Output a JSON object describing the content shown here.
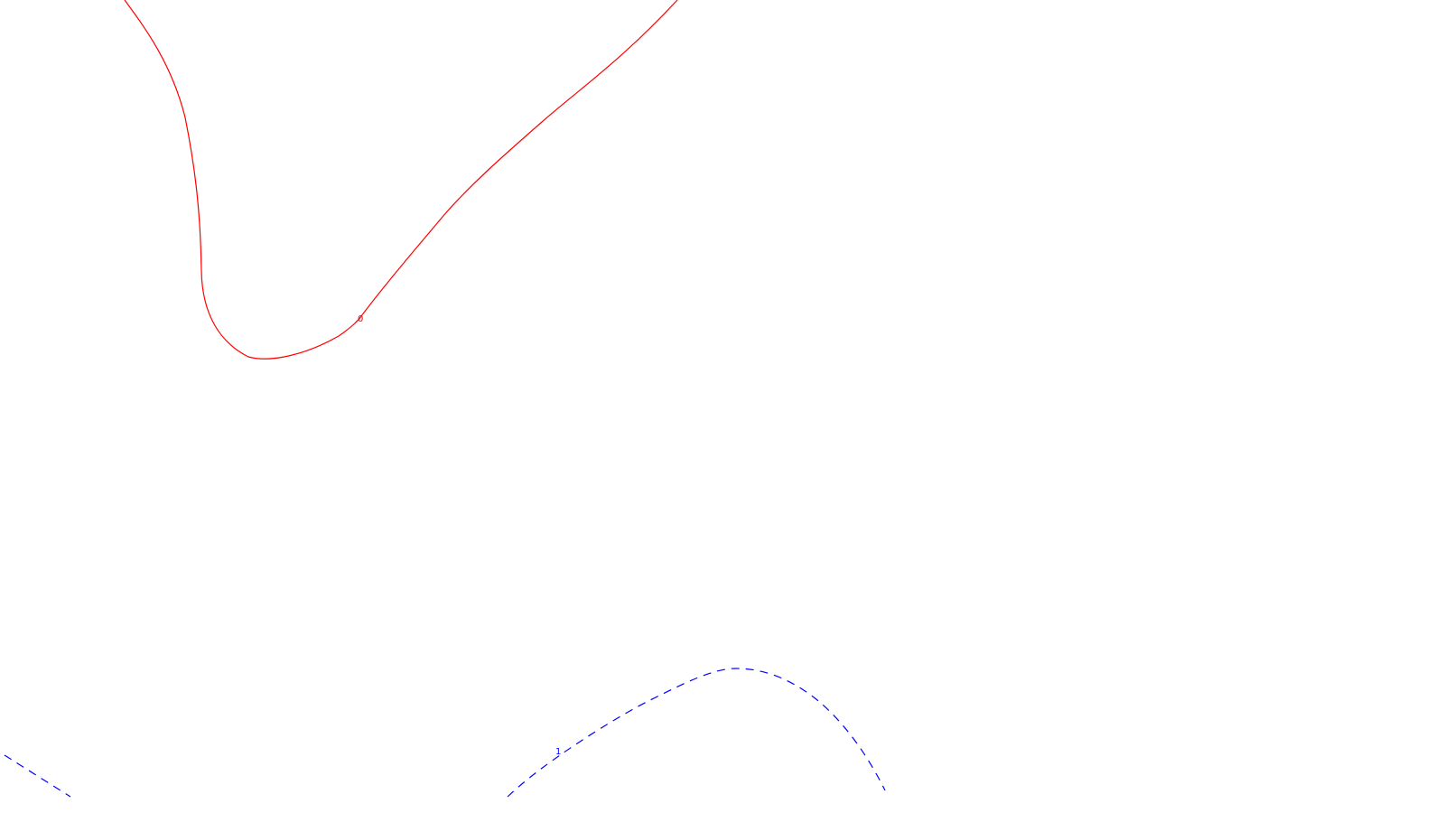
{
  "contours": [
    {
      "id": "contour-0",
      "label": "0",
      "style": "solid",
      "color": "#ff0000"
    },
    {
      "id": "contour-1",
      "label": "1",
      "style": "dashed",
      "color": "#0000ff"
    }
  ],
  "colors": {
    "background": "#ffffff"
  }
}
